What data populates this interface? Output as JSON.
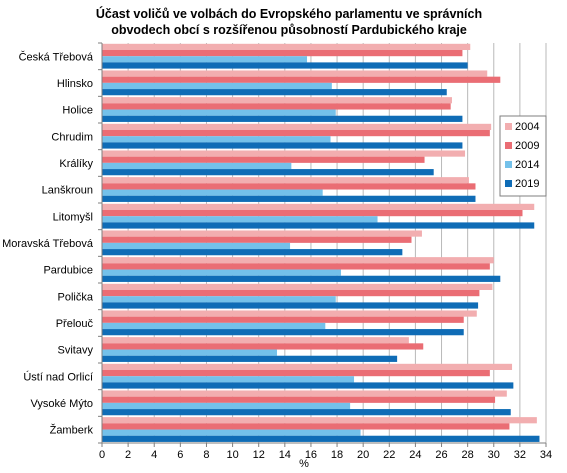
{
  "chart_data": {
    "type": "bar",
    "orientation": "horizontal",
    "title": "Účast voličů ve volbách do Evropského parlamentu ve správních obvodech obcí s rozšířenou působností Pardubického kraje",
    "title_lines": [
      "Účast voličů ve volbách do Evropského parlamentu ve správních",
      "obvodech obcí s rozšířenou působností Pardubického kraje"
    ],
    "xlabel": "%",
    "ylabel": "",
    "xlim": [
      0,
      34
    ],
    "xticks": [
      0,
      2,
      4,
      6,
      8,
      10,
      12,
      14,
      16,
      18,
      20,
      22,
      24,
      26,
      28,
      30,
      32,
      34
    ],
    "grid": "vertical",
    "legend_position": "right",
    "categories": [
      "Česká Třebová",
      "Hlinsko",
      "Holice",
      "Chrudim",
      "Králíky",
      "Lanškroun",
      "Litomyšl",
      "Moravská Třebová",
      "Pardubice",
      "Polička",
      "Přelouč",
      "Svitavy",
      "Ústí nad Orlicí",
      "Vysoké Mýto",
      "Žamberk"
    ],
    "series": [
      {
        "name": "2004",
        "color": "#f2aeb0",
        "values": [
          28.2,
          29.5,
          26.8,
          29.8,
          27.8,
          28.1,
          33.1,
          24.5,
          30.0,
          29.9,
          28.7,
          23.5,
          31.4,
          31.0,
          33.3
        ]
      },
      {
        "name": "2009",
        "color": "#ea6d74",
        "values": [
          27.6,
          30.5,
          26.7,
          29.7,
          24.7,
          28.6,
          32.2,
          23.7,
          29.7,
          28.9,
          27.7,
          24.6,
          29.7,
          30.1,
          31.2
        ]
      },
      {
        "name": "2014",
        "color": "#74c1ea",
        "values": [
          15.7,
          17.6,
          17.9,
          17.5,
          14.5,
          16.9,
          21.1,
          14.4,
          18.3,
          17.9,
          17.1,
          13.4,
          19.3,
          19.0,
          19.8
        ]
      },
      {
        "name": "2019",
        "color": "#0f6cb6",
        "values": [
          28.0,
          26.4,
          27.6,
          27.6,
          25.4,
          28.6,
          33.1,
          23.0,
          30.5,
          28.8,
          27.7,
          22.6,
          31.5,
          31.3,
          33.5
        ]
      }
    ]
  }
}
